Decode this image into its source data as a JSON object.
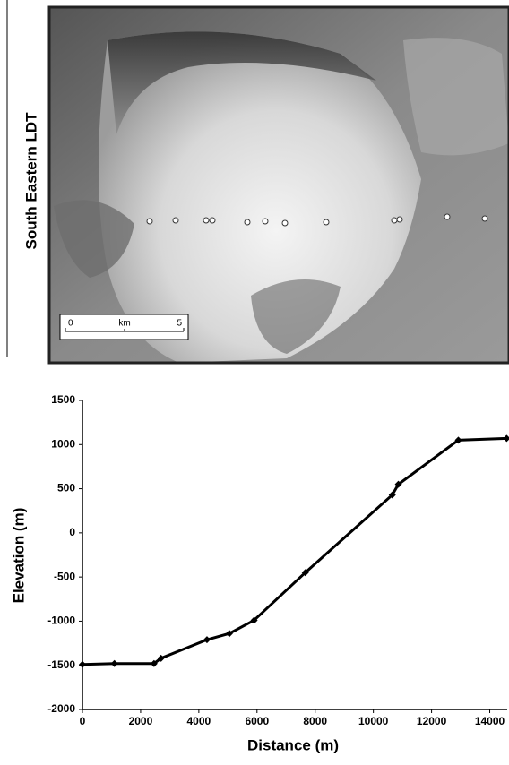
{
  "image_panel": {
    "label": "South Eastern LDT",
    "scale_bar": {
      "start": "0",
      "unit": "km",
      "end": "5"
    }
  },
  "chart_data": {
    "type": "line",
    "xlabel": "Distance (m)",
    "ylabel": "Elevation (m)",
    "x": [
      0,
      1100,
      2460,
      2700,
      4280,
      5050,
      5900,
      7660,
      10650,
      10860,
      12920,
      14580
    ],
    "values": [
      -1490,
      -1480,
      -1480,
      -1420,
      -1210,
      -1140,
      -990,
      -450,
      430,
      550,
      1050,
      1070
    ],
    "color": "#000000",
    "xlim": [
      0,
      14600
    ],
    "xticks": [
      0,
      2000,
      4000,
      6000,
      8000,
      10000,
      12000,
      14000
    ],
    "ylim": [
      -2000,
      1500
    ],
    "yticks": [
      -2000,
      -1500,
      -1000,
      -500,
      0,
      500,
      1000,
      1500
    ]
  }
}
